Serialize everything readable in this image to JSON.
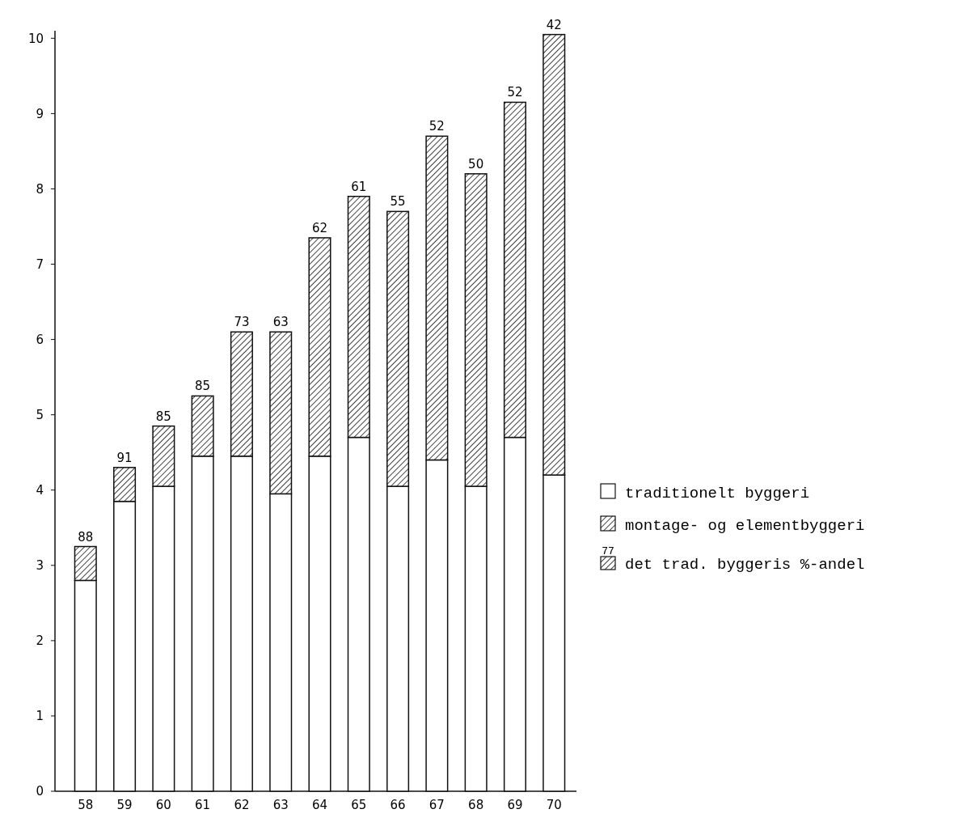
{
  "chart_data": {
    "type": "bar",
    "stacked": true,
    "categories": [
      "58",
      "59",
      "60",
      "61",
      "62",
      "63",
      "64",
      "65",
      "66",
      "67",
      "68",
      "69",
      "70"
    ],
    "series": [
      {
        "name": "traditionelt byggeri",
        "color": "#ffffff",
        "values": [
          2.8,
          3.85,
          4.05,
          4.45,
          4.45,
          3.95,
          4.45,
          4.7,
          4.05,
          4.4,
          4.05,
          4.7,
          4.2
        ]
      },
      {
        "name": "montage- og elementbyggeri",
        "color": "#111111",
        "values": [
          0.45,
          0.45,
          0.8,
          0.8,
          1.65,
          2.15,
          2.9,
          3.2,
          3.65,
          4.3,
          4.15,
          4.45,
          5.85
        ]
      }
    ],
    "ylim": [
      0,
      10.1
    ],
    "yticks": [
      0,
      1,
      2,
      3,
      4,
      5,
      6,
      7,
      8,
      9,
      10
    ],
    "grid": false,
    "legend": "right",
    "annotations": [
      "77",
      "det trad. byggeris %-andel",
      {
        "text": "88",
        "x": "58",
        "y": 3.25
      },
      {
        "text": "91",
        "x": "59",
        "y": 4.3
      },
      {
        "text": "85",
        "x": "60",
        "y": 4.85
      },
      {
        "text": "85",
        "x": "61",
        "y": 5.25
      },
      {
        "text": "73",
        "x": "62",
        "y": 6.1
      },
      {
        "text": "63",
        "x": "63",
        "y": 6.1
      },
      {
        "text": "62",
        "x": "64",
        "y": 7.35
      },
      {
        "text": "61",
        "x": "65",
        "y": 7.9
      },
      {
        "text": "55",
        "x": "66",
        "y": 7.7
      },
      {
        "text": "52",
        "x": "67",
        "y": 8.7
      },
      {
        "text": "50",
        "x": "68",
        "y": 8.2
      },
      {
        "text": "52",
        "x": "69",
        "y": 9.15
      },
      {
        "text": "42",
        "x": "70",
        "y": 10.05
      }
    ]
  }
}
